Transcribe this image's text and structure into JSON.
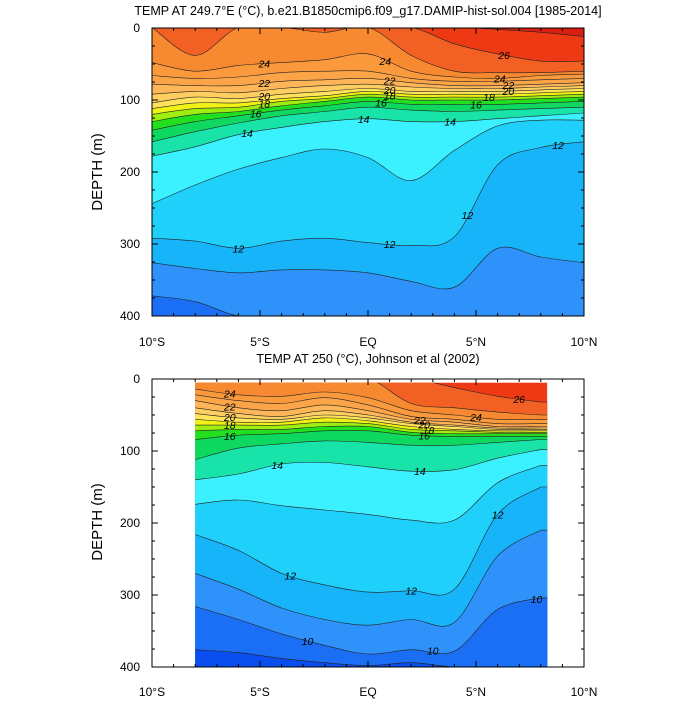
{
  "chart_data": [
    {
      "type": "heatmap",
      "title": "TEMP AT 249.7°E (°C), b.e21.B1850cmip6.f09_g17.DAMIP-hist-sol.004 [1985-2014]",
      "ylabel": "DEPTH (m)",
      "xlabel": "",
      "x_ticks": [
        "10°S",
        "5°S",
        "EQ",
        "5°N",
        "10°N"
      ],
      "x_tick_values": [
        -10,
        -5,
        0,
        5,
        10
      ],
      "y_ticks": [
        "0",
        "100",
        "200",
        "300",
        "400"
      ],
      "y_tick_values": [
        0,
        100,
        200,
        300,
        400
      ],
      "xlim": [
        -10,
        10
      ],
      "ylim": [
        400,
        0
      ],
      "contour_levels": [
        8,
        9,
        10,
        11,
        12,
        13,
        14,
        15,
        16,
        17,
        18,
        19,
        20,
        21,
        22,
        23,
        24,
        25,
        26,
        27,
        28
      ],
      "lats": [
        -10,
        -8,
        -6,
        -4,
        -2,
        0,
        2,
        4,
        6,
        8,
        10
      ],
      "depth_levels": [
        {
          "value": 27,
          "depth": [
            -1,
            -1,
            -1,
            -1,
            -1,
            -1,
            -1,
            -1,
            2,
            6,
            12
          ]
        },
        {
          "value": 26,
          "depth": [
            -1,
            -1,
            -1,
            -1,
            -1,
            -1,
            -1,
            22,
            36,
            46,
            46
          ]
        },
        {
          "value": 25,
          "depth": [
            -1,
            38,
            -1,
            -1,
            6,
            -1,
            38,
            60,
            62,
            62,
            60
          ]
        },
        {
          "value": 24,
          "depth": [
            48,
            60,
            52,
            48,
            44,
            36,
            60,
            68,
            70,
            66,
            64
          ]
        },
        {
          "value": 23,
          "depth": [
            66,
            70,
            68,
            62,
            60,
            60,
            70,
            74,
            74,
            72,
            70
          ]
        },
        {
          "value": 22,
          "depth": [
            78,
            80,
            80,
            74,
            72,
            70,
            76,
            80,
            80,
            78,
            76
          ]
        },
        {
          "value": 21,
          "depth": [
            92,
            88,
            90,
            84,
            80,
            78,
            82,
            84,
            84,
            82,
            80
          ]
        },
        {
          "value": 20,
          "depth": [
            104,
            96,
            98,
            92,
            88,
            84,
            88,
            88,
            88,
            86,
            84
          ]
        },
        {
          "value": 19,
          "depth": [
            112,
            104,
            104,
            98,
            94,
            88,
            92,
            92,
            92,
            90,
            88
          ]
        },
        {
          "value": 18,
          "depth": [
            120,
            112,
            110,
            102,
            98,
            92,
            96,
            96,
            96,
            94,
            92
          ]
        },
        {
          "value": 17,
          "depth": [
            130,
            120,
            116,
            108,
            102,
            96,
            100,
            100,
            100,
            98,
            96
          ]
        },
        {
          "value": 16,
          "depth": [
            142,
            130,
            122,
            114,
            108,
            102,
            106,
            106,
            106,
            104,
            102
          ]
        },
        {
          "value": 15,
          "depth": [
            158,
            144,
            132,
            122,
            116,
            110,
            114,
            116,
            114,
            112,
            110
          ]
        },
        {
          "value": 14,
          "depth": [
            178,
            165,
            148,
            138,
            130,
            126,
            130,
            130,
            126,
            122,
            118
          ]
        },
        {
          "value": 13,
          "depth": [
            244,
            218,
            196,
            180,
            168,
            180,
            212,
            170,
            136,
            128,
            128
          ]
        },
        {
          "value": 12,
          "depth": [
            292,
            296,
            306,
            296,
            292,
            298,
            302,
            290,
            190,
            166,
            158
          ]
        },
        {
          "value": 11,
          "depth": [
            326,
            334,
            340,
            336,
            336,
            340,
            352,
            360,
            306,
            318,
            326
          ]
        },
        {
          "value": 10,
          "depth": [
            372,
            380,
            400,
            400,
            400,
            400,
            400,
            400,
            400,
            400,
            400
          ]
        }
      ],
      "contour_labels": [
        "24",
        "22",
        "20",
        "18",
        "16",
        "14",
        "24",
        "22",
        "20",
        "18",
        "16",
        "14",
        "26",
        "24",
        "22",
        "20",
        "18",
        "16",
        "14",
        "12",
        "12",
        "12",
        "12"
      ]
    },
    {
      "type": "heatmap",
      "title": "TEMP AT 250 (°C), Johnson et al (2002)",
      "ylabel": "DEPTH (m)",
      "xlabel": "",
      "x_ticks": [
        "10°S",
        "5°S",
        "EQ",
        "5°N",
        "10°N"
      ],
      "x_tick_values": [
        -10,
        -5,
        0,
        5,
        10
      ],
      "y_ticks": [
        "0",
        "100",
        "200",
        "300",
        "400"
      ],
      "y_tick_values": [
        0,
        100,
        200,
        300,
        400
      ],
      "xlim": [
        -10,
        10
      ],
      "ylim": [
        400,
        0
      ],
      "data_xlim": [
        -8,
        8.3
      ],
      "data_ylim": [
        5,
        400
      ],
      "contour_levels": [
        8,
        9,
        10,
        11,
        12,
        13,
        14,
        15,
        16,
        17,
        18,
        19,
        20,
        21,
        22,
        23,
        24,
        25,
        26,
        27,
        28
      ],
      "lats": [
        -8,
        -6,
        -4,
        -2,
        0,
        2,
        4,
        6,
        8
      ],
      "depth_levels": [
        {
          "value": 26,
          "depth": [
            -1,
            -1,
            -1,
            -1,
            -1,
            -1,
            12,
            24,
            32
          ]
        },
        {
          "value": 25,
          "depth": [
            -1,
            -1,
            -1,
            -1,
            -1,
            34,
            40,
            46,
            50
          ]
        },
        {
          "value": 24,
          "depth": [
            14,
            22,
            24,
            18,
            26,
            44,
            50,
            56,
            56
          ]
        },
        {
          "value": 23,
          "depth": [
            22,
            30,
            34,
            26,
            36,
            52,
            56,
            62,
            62
          ]
        },
        {
          "value": 22,
          "depth": [
            30,
            40,
            44,
            36,
            44,
            56,
            60,
            66,
            66
          ]
        },
        {
          "value": 21,
          "depth": [
            40,
            48,
            52,
            44,
            50,
            60,
            64,
            68,
            68
          ]
        },
        {
          "value": 20,
          "depth": [
            48,
            54,
            56,
            50,
            54,
            62,
            66,
            70,
            70
          ]
        },
        {
          "value": 19,
          "depth": [
            56,
            60,
            60,
            54,
            58,
            66,
            70,
            72,
            72
          ]
        },
        {
          "value": 18,
          "depth": [
            64,
            64,
            64,
            60,
            62,
            70,
            72,
            74,
            74
          ]
        },
        {
          "value": 17,
          "depth": [
            72,
            70,
            70,
            66,
            66,
            74,
            76,
            76,
            76
          ]
        },
        {
          "value": 16,
          "depth": [
            84,
            78,
            76,
            72,
            72,
            78,
            80,
            80,
            80
          ]
        },
        {
          "value": 15,
          "depth": [
            112,
            96,
            90,
            86,
            88,
            92,
            92,
            88,
            84
          ]
        },
        {
          "value": 14,
          "depth": [
            140,
            132,
            118,
            116,
            122,
            128,
            126,
            110,
            98
          ]
        },
        {
          "value": 13,
          "depth": [
            174,
            168,
            176,
            182,
            188,
            196,
            196,
            144,
            120
          ]
        },
        {
          "value": 12,
          "depth": [
            216,
            238,
            270,
            286,
            296,
            294,
            292,
            188,
            150
          ]
        },
        {
          "value": 11,
          "depth": [
            270,
            292,
            318,
            334,
            342,
            334,
            338,
            246,
            210
          ]
        },
        {
          "value": 10,
          "depth": [
            316,
            334,
            354,
            370,
            382,
            376,
            378,
            320,
            304
          ]
        },
        {
          "value": 9,
          "depth": [
            376,
            380,
            388,
            394,
            398,
            394,
            400,
            400,
            400
          ]
        }
      ],
      "contour_labels": [
        "24",
        "22",
        "20",
        "18",
        "16",
        "14",
        "22",
        "20",
        "18",
        "16",
        "14",
        "26",
        "24",
        "12",
        "12",
        "12",
        "10",
        "10",
        "10"
      ]
    }
  ]
}
